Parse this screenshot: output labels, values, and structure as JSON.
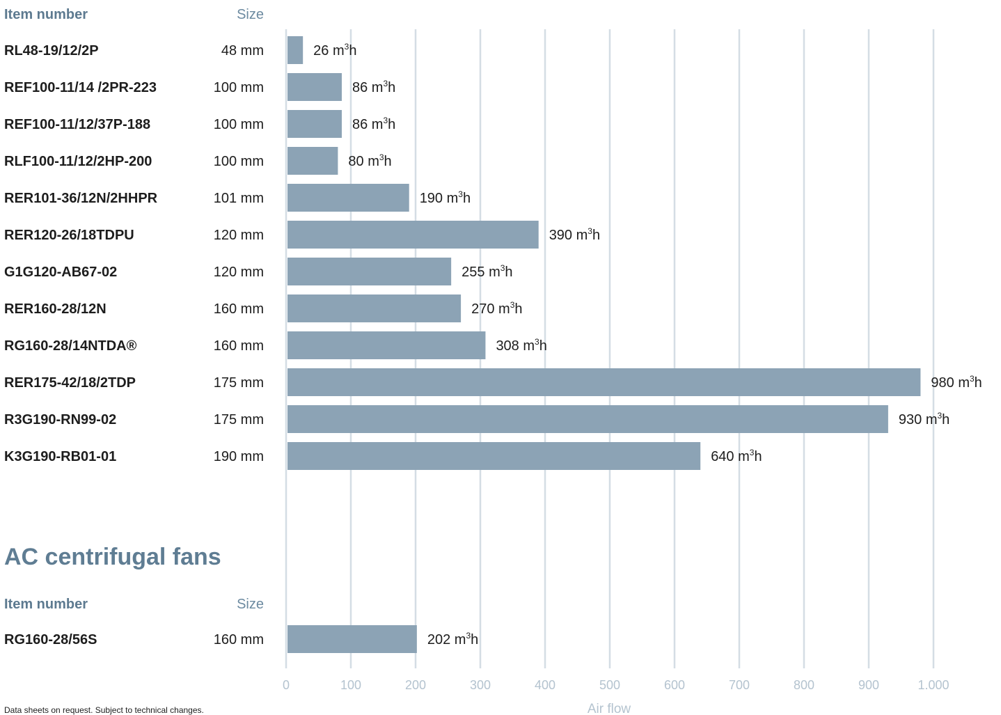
{
  "chart_data": {
    "type": "bar",
    "orientation": "horizontal",
    "xlabel": "Air flow",
    "xlim": [
      0,
      1000
    ],
    "ticks": [
      {
        "value": 0,
        "label": "0"
      },
      {
        "value": 100,
        "label": "100"
      },
      {
        "value": 200,
        "label": "200"
      },
      {
        "value": 300,
        "label": "300"
      },
      {
        "value": 400,
        "label": "400"
      },
      {
        "value": 500,
        "label": "500"
      },
      {
        "value": 600,
        "label": "600"
      },
      {
        "value": 700,
        "label": "700"
      },
      {
        "value": 800,
        "label": "800"
      },
      {
        "value": 900,
        "label": "900"
      },
      {
        "value": 1000,
        "label": "1.000"
      }
    ],
    "grid": true,
    "unit_base": "m",
    "unit_sup": "3",
    "unit_suffix": "h",
    "bar_color": "#8ca3b5",
    "header": {
      "item_label": "Item number",
      "size_label": "Size"
    },
    "groups": [
      {
        "title": "",
        "rows": [
          {
            "item": "RL48-19/12/2P",
            "size": "48 mm",
            "value": 26
          },
          {
            "item": "REF100-11/14 /2PR-223",
            "size": "100 mm",
            "value": 86
          },
          {
            "item": "REF100-11/12/37P-188",
            "size": "100 mm",
            "value": 86
          },
          {
            "item": "RLF100-11/12/2HP-200",
            "size": "100 mm",
            "value": 80
          },
          {
            "item": "RER101-36/12N/2HHPR",
            "size": "101 mm",
            "value": 190
          },
          {
            "item": "RER120-26/18TDPU",
            "size": "120 mm",
            "value": 390
          },
          {
            "item": "G1G120-AB67-02",
            "size": "120 mm",
            "value": 255
          },
          {
            "item": "RER160-28/12N",
            "size": "160 mm",
            "value": 270
          },
          {
            "item": "RG160-28/14NTDA®",
            "size": "160 mm",
            "value": 308
          },
          {
            "item": "RER175-42/18/2TDP",
            "size": "175 mm",
            "value": 980
          },
          {
            "item": "R3G190-RN99-02",
            "size": "175 mm",
            "value": 930
          },
          {
            "item": "K3G190-RB01-01",
            "size": "190 mm",
            "value": 640
          }
        ]
      },
      {
        "title": "AC centrifugal fans",
        "rows": [
          {
            "item": "RG160-28/56S",
            "size": "160 mm",
            "value": 202
          }
        ]
      }
    ]
  },
  "footnote": "Data sheets on request. Subject to technical changes."
}
